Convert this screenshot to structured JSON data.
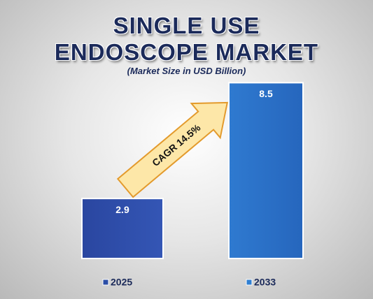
{
  "chart_data": {
    "type": "bar",
    "title": "SINGLE USE ENDOSCOPE MARKET",
    "subtitle": "(Market Size in USD Billion)",
    "annotation": "CAGR 14.5%",
    "categories": [
      "2025",
      "2033"
    ],
    "values": [
      2.9,
      8.5
    ],
    "colors": [
      "#2b4ea6",
      "#2f7fd2"
    ]
  }
}
